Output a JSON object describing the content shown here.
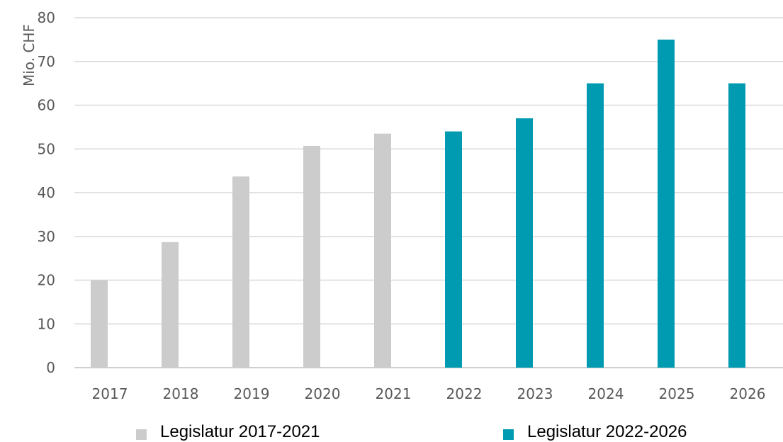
{
  "chart_data": {
    "type": "bar",
    "categories": [
      "2017",
      "2018",
      "2019",
      "2020",
      "2021",
      "2022",
      "2023",
      "2024",
      "2025",
      "2026"
    ],
    "series": [
      {
        "name": "Legislatur 2017-2021",
        "color": "#cccccc",
        "values": [
          20,
          28.7,
          43.7,
          50.7,
          53.5,
          null,
          null,
          null,
          null,
          null
        ]
      },
      {
        "name": "Legislatur 2022-2026",
        "color": "#009bb0",
        "values": [
          null,
          null,
          null,
          null,
          null,
          54,
          57,
          65,
          75,
          65
        ]
      }
    ],
    "ylabel": "Mio. CHF",
    "xlabel": "",
    "ylim": [
      0,
      80
    ],
    "yticks": [
      0,
      10,
      20,
      30,
      40,
      50,
      60,
      70,
      80
    ],
    "grid": true,
    "legend_position": "bottom"
  }
}
